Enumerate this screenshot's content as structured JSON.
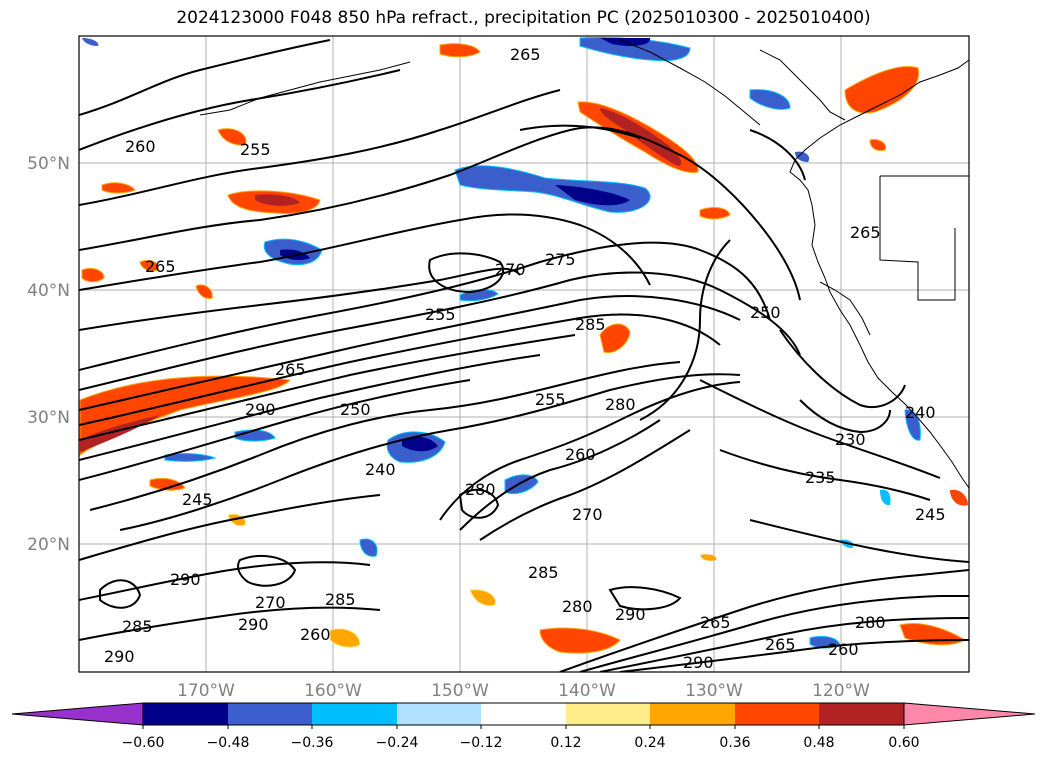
{
  "title": "2024123000 F048 850 hPa refract., precipitation PC (2025010300 - 2025010400)",
  "lat_labels": [
    "50°N",
    "40°N",
    "30°N",
    "20°N"
  ],
  "lon_labels": [
    "170°W",
    "160°W",
    "150°W",
    "140°W",
    "130°W",
    "120°W"
  ],
  "contour_labels": [
    "265",
    "260",
    "255",
    "265",
    "285",
    "275",
    "265",
    "270",
    "290",
    "250",
    "255",
    "240",
    "260",
    "280",
    "265",
    "230",
    "235",
    "280",
    "290",
    "270",
    "285",
    "245",
    "290",
    "285",
    "290",
    "280",
    "270",
    "265",
    "260",
    "280",
    "290",
    "265",
    "290",
    "285",
    "260",
    "240",
    "245",
    "250",
    "255"
  ],
  "colorbar": {
    "ticks": [
      "−0.60",
      "−0.48",
      "−0.36",
      "−0.24",
      "−0.12",
      "0.12",
      "0.24",
      "0.36",
      "0.48",
      "0.60"
    ],
    "colors": [
      "#9932CC",
      "#00008B",
      "#3A5FCD",
      "#00BFFF",
      "#B0E2FF",
      "#FFFFFF",
      "#FFEC8B",
      "#FFA500",
      "#FF4500",
      "#B22222",
      "#FF88AA"
    ]
  }
}
